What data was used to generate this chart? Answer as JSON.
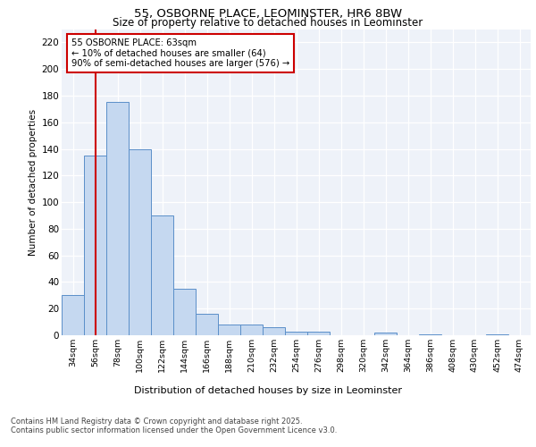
{
  "title_line1": "55, OSBORNE PLACE, LEOMINSTER, HR6 8BW",
  "title_line2": "Size of property relative to detached houses in Leominster",
  "xlabel": "Distribution of detached houses by size in Leominster",
  "ylabel": "Number of detached properties",
  "categories": [
    "34sqm",
    "56sqm",
    "78sqm",
    "100sqm",
    "122sqm",
    "144sqm",
    "166sqm",
    "188sqm",
    "210sqm",
    "232sqm",
    "254sqm",
    "276sqm",
    "298sqm",
    "320sqm",
    "342sqm",
    "364sqm",
    "386sqm",
    "408sqm",
    "430sqm",
    "452sqm",
    "474sqm"
  ],
  "values": [
    30,
    135,
    175,
    140,
    90,
    35,
    16,
    8,
    8,
    6,
    3,
    3,
    0,
    0,
    2,
    0,
    1,
    0,
    0,
    1,
    0
  ],
  "bar_color": "#c5d8f0",
  "bar_edge_color": "#5b8fc9",
  "vline_x": 1.0,
  "vline_color": "#cc0000",
  "annotation_text": "55 OSBORNE PLACE: 63sqm\n← 10% of detached houses are smaller (64)\n90% of semi-detached houses are larger (576) →",
  "annotation_box_color": "#cc0000",
  "ylim": [
    0,
    230
  ],
  "yticks": [
    0,
    20,
    40,
    60,
    80,
    100,
    120,
    140,
    160,
    180,
    200,
    220
  ],
  "bg_color": "#eef2f9",
  "grid_color": "#ffffff",
  "footer_line1": "Contains HM Land Registry data © Crown copyright and database right 2025.",
  "footer_line2": "Contains public sector information licensed under the Open Government Licence v3.0."
}
